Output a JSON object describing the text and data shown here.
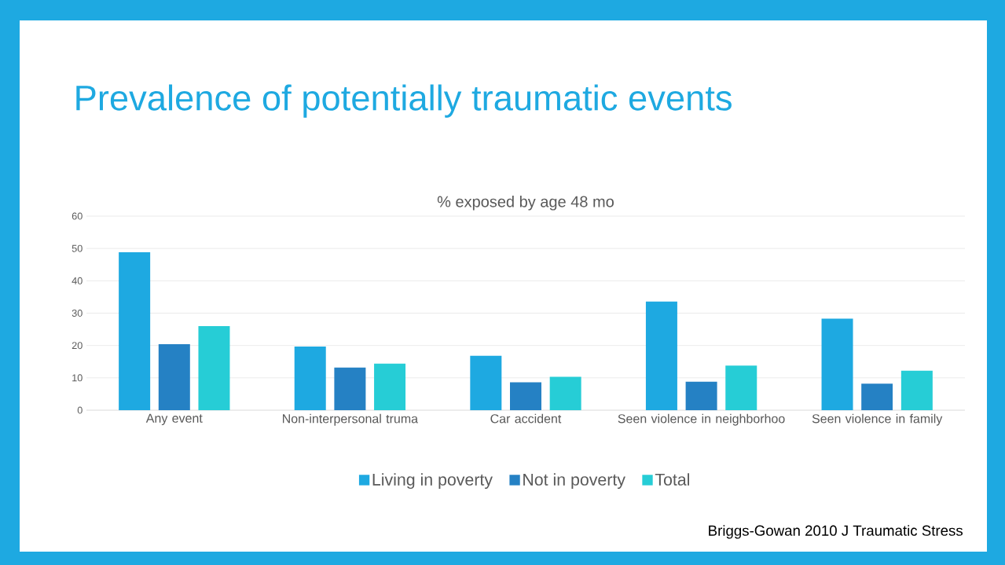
{
  "chart_data": {
    "type": "bar",
    "title": "Prevalence of potentially traumatic events",
    "subtitle": "% exposed by age 48 mo",
    "categories": [
      "Any event",
      "Non-interpersonal truma",
      "Car accident",
      "Seen violence in neighborhoo",
      "Seen violence in family"
    ],
    "series": [
      {
        "name": "Living in poverty",
        "color": "#1EA9E1",
        "values": [
          48.8,
          19.7,
          16.8,
          33.6,
          28.3
        ]
      },
      {
        "name": "Not in poverty",
        "color": "#2581C4",
        "values": [
          20.4,
          13.2,
          8.6,
          8.8,
          8.2
        ]
      },
      {
        "name": "Total",
        "color": "#26CDD6",
        "values": [
          26.0,
          14.4,
          10.3,
          13.8,
          12.2
        ]
      }
    ],
    "ylim": [
      0,
      60
    ],
    "yticks": [
      0,
      10,
      20,
      30,
      40,
      50,
      60
    ],
    "grid": "y",
    "legend": "bottom",
    "annotations": [
      "Briggs-Gowan 2010 J Traumatic Stress"
    ]
  }
}
